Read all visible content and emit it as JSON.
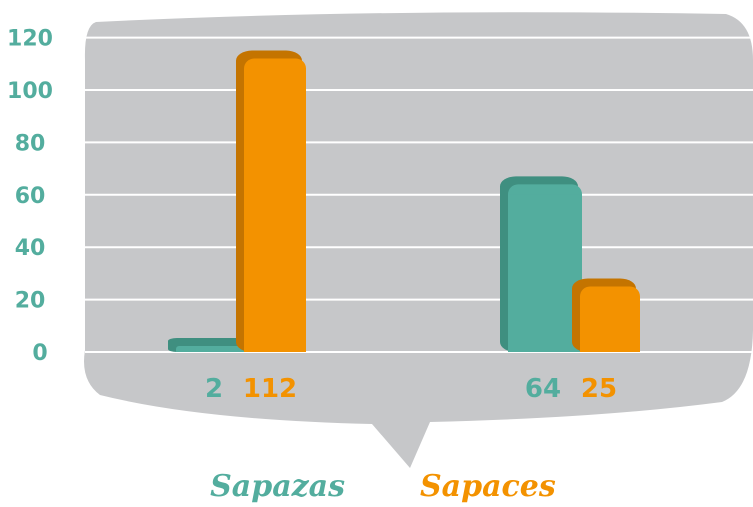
{
  "colors": {
    "teal": "#53ad9e",
    "teal_dark": "#3f8f80",
    "orange": "#f39200",
    "orange_dark": "#c47400",
    "bubble": "#c6c7c9",
    "grid": "#ffffff"
  },
  "chart_data": {
    "type": "bar",
    "categories": [
      "",
      ""
    ],
    "series": [
      {
        "name": "Sapazas",
        "color": "#53ad9e",
        "values": [
          2,
          64
        ]
      },
      {
        "name": "Sapaces",
        "color": "#f39200",
        "values": [
          112,
          25
        ]
      }
    ],
    "y_ticks": [
      0,
      20,
      40,
      60,
      80,
      100,
      120
    ],
    "ylim": [
      0,
      120
    ],
    "grid": true,
    "legend_position": "bottom-center",
    "title": "",
    "xlabel": "",
    "ylabel": ""
  },
  "legend": {
    "label_1": "Sapazas",
    "label_2": "Sapaces"
  }
}
